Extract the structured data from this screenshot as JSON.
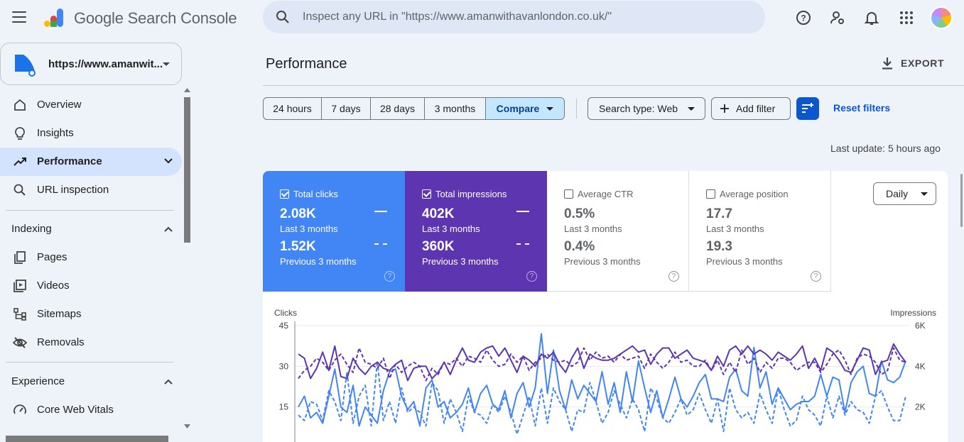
{
  "app": {
    "title": "Google Search Console"
  },
  "search": {
    "placeholder": "Inspect any URL in \"https://www.amanwithavanlondon.co.uk/\""
  },
  "header_icons": [
    "help-icon",
    "manage-account-icon",
    "notifications-icon",
    "apps-grid-icon"
  ],
  "property": {
    "label": "https://www.amanwit..."
  },
  "sidebar": {
    "items": [
      {
        "label": "Overview",
        "icon": "home-icon"
      },
      {
        "label": "Insights",
        "icon": "lightbulb-icon"
      },
      {
        "label": "Performance",
        "icon": "trending-up-icon",
        "active": true
      },
      {
        "label": "URL inspection",
        "icon": "search-icon"
      }
    ],
    "sections": [
      {
        "label": "Indexing",
        "items": [
          {
            "label": "Pages",
            "icon": "pages-icon"
          },
          {
            "label": "Videos",
            "icon": "video-icon"
          },
          {
            "label": "Sitemaps",
            "icon": "sitemap-icon"
          },
          {
            "label": "Removals",
            "icon": "visibility-off-icon"
          }
        ]
      },
      {
        "label": "Experience",
        "items": [
          {
            "label": "Core Web Vitals",
            "icon": "speed-icon"
          }
        ]
      }
    ]
  },
  "main": {
    "title": "Performance",
    "export_label": "EXPORT",
    "date_ranges": [
      "24 hours",
      "7 days",
      "28 days",
      "3 months",
      "Compare"
    ],
    "selected_range": "Compare",
    "search_type": "Search type: Web",
    "add_filter": "Add filter",
    "reset_filters": "Reset filters",
    "last_update": "Last update: 5 hours ago",
    "granularity": "Daily"
  },
  "metrics": [
    {
      "name": "Total clicks",
      "checked": true,
      "current": "2.08K",
      "current_label": "Last 3 months",
      "previous": "1.52K",
      "previous_label": "Previous 3 months",
      "color": "#4285f4"
    },
    {
      "name": "Total impressions",
      "checked": true,
      "current": "402K",
      "current_label": "Last 3 months",
      "previous": "360K",
      "previous_label": "Previous 3 months",
      "color": "#5e35b1"
    },
    {
      "name": "Average CTR",
      "checked": false,
      "current": "0.5%",
      "current_label": "Last 3 months",
      "previous": "0.4%",
      "previous_label": "Previous 3 months"
    },
    {
      "name": "Average position",
      "checked": false,
      "current": "17.7",
      "current_label": "Last 3 months",
      "previous": "19.3",
      "previous_label": "Previous 3 months"
    }
  ],
  "chart_data": {
    "type": "line",
    "y_left_label": "Clicks",
    "y_right_label": "Impressions",
    "y_left_ticks": [
      "45",
      "30",
      "15"
    ],
    "y_right_ticks": [
      "6K",
      "4K",
      "2K"
    ],
    "ylim_left": [
      0,
      45
    ],
    "ylim_right": [
      0,
      6000
    ],
    "series": [
      {
        "name": "Total clicks",
        "style": "solid",
        "color": "#4285f4",
        "axis": "left",
        "values": [
          15,
          19,
          11,
          13,
          9,
          19,
          29,
          15,
          13,
          23,
          8,
          15,
          12,
          9,
          21,
          28,
          29,
          19,
          14,
          17,
          8,
          22,
          25,
          15,
          17,
          11,
          13,
          16,
          22,
          13,
          20,
          23,
          16,
          14,
          21,
          11,
          20,
          24,
          15,
          22,
          42,
          20,
          36,
          21,
          14,
          25,
          18,
          23,
          20,
          17,
          28,
          16,
          24,
          13,
          28,
          17,
          32,
          22,
          13,
          21,
          11,
          18,
          26,
          18,
          15,
          19,
          24,
          27,
          18,
          18,
          17,
          26,
          29,
          21,
          19,
          37,
          22,
          28,
          16,
          22,
          18,
          14,
          16,
          17,
          17,
          19,
          27,
          19,
          26,
          25,
          13,
          24,
          28,
          30,
          20,
          19,
          32,
          25,
          24,
          26,
          32
        ]
      },
      {
        "name": "Total clicks (previous)",
        "style": "dashed",
        "color": "#4285f4",
        "axis": "left",
        "values": [
          12,
          10,
          17,
          16,
          10,
          21,
          17,
          10,
          28,
          9,
          19,
          23,
          8,
          32,
          10,
          17,
          9,
          22,
          13,
          15,
          13,
          8,
          24,
          21,
          9,
          18,
          13,
          6,
          19,
          13,
          12,
          9,
          16,
          13,
          19,
          13,
          5,
          12,
          19,
          8,
          22,
          9,
          22,
          17,
          14,
          6,
          14,
          13,
          24,
          17,
          9,
          13,
          21,
          16,
          11,
          18,
          14,
          6,
          22,
          18,
          11,
          9,
          13,
          18,
          12,
          14,
          20,
          14,
          9,
          18,
          6,
          22,
          14,
          11,
          13,
          9,
          20,
          14,
          9,
          22,
          14,
          8,
          10,
          19,
          14,
          12,
          8,
          19,
          11,
          19,
          12,
          17,
          14,
          13,
          9,
          19,
          21,
          15,
          10,
          10,
          19
        ]
      },
      {
        "name": "Total impressions",
        "style": "solid",
        "color": "#5e35b1",
        "axis": "right",
        "values": [
          4600,
          4400,
          3400,
          3900,
          4700,
          3800,
          5000,
          3500,
          3400,
          4400,
          3900,
          3600,
          4000,
          4200,
          3900,
          3800,
          4100,
          4300,
          3300,
          3900,
          4000,
          4000,
          3400,
          3700,
          4200,
          3600,
          4300,
          4900,
          4300,
          4200,
          4700,
          4900,
          5000,
          4500,
          4900,
          4300,
          3700,
          4500,
          4300,
          4000,
          4600,
          4400,
          4700,
          4100,
          3700,
          4400,
          4900,
          3900,
          4600,
          4400,
          4300,
          4300,
          4400,
          4600,
          4800,
          5000,
          4700,
          4800,
          4100,
          4600,
          4900,
          4900,
          4400,
          4600,
          4800,
          4400,
          4300,
          4200,
          3800,
          4500,
          4000,
          4800,
          5000,
          4600,
          5000,
          4600,
          4800,
          4600,
          4300,
          4700,
          4500,
          4300,
          4600,
          5000,
          3900,
          4400,
          3800,
          4900,
          4700,
          4300,
          3800,
          3700,
          4300,
          4900,
          4800,
          3600,
          4200,
          4300,
          5100,
          4600,
          4200
        ]
      },
      {
        "name": "Total impressions (previous)",
        "style": "dashed",
        "color": "#5e35b1",
        "axis": "right",
        "values": [
          3400,
          3800,
          4000,
          4400,
          4200,
          3800,
          4300,
          4600,
          4100,
          3700,
          4900,
          4200,
          4100,
          3900,
          4400,
          3400,
          4100,
          3700,
          4000,
          4200,
          4000,
          3300,
          3900,
          3600,
          4200,
          4100,
          4400,
          4000,
          4500,
          4400,
          4200,
          4800,
          4300,
          4000,
          4100,
          4600,
          4200,
          4500,
          3800,
          4200,
          4400,
          4600,
          4300,
          4200,
          4300,
          4000,
          4200,
          4900,
          4300,
          4700,
          4400,
          4500,
          4200,
          4600,
          4300,
          4400,
          4500,
          3900,
          4600,
          4200,
          3900,
          4200,
          4700,
          4200,
          4300,
          4000,
          4000,
          4300,
          3800,
          4300,
          3600,
          4200,
          3700,
          4800,
          4100,
          4400,
          3700,
          4200,
          3900,
          4400,
          4400,
          4200,
          3800,
          4000,
          4200,
          4200,
          3700,
          4100,
          4600,
          4800,
          4300,
          3600,
          4400,
          4600,
          4500,
          4200,
          3600,
          3800,
          4900,
          4300,
          4200
        ]
      }
    ]
  }
}
